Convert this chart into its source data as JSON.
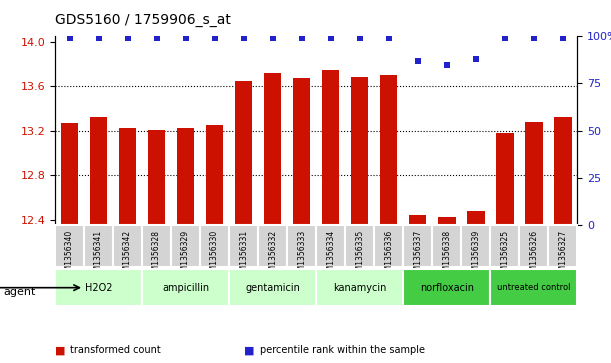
{
  "title": "GDS5160 / 1759906_s_at",
  "samples": [
    "GSM1356340",
    "GSM1356341",
    "GSM1356342",
    "GSM1356328",
    "GSM1356329",
    "GSM1356330",
    "GSM1356331",
    "GSM1356332",
    "GSM1356333",
    "GSM1356334",
    "GSM1356335",
    "GSM1356336",
    "GSM1356337",
    "GSM1356338",
    "GSM1356339",
    "GSM1356325",
    "GSM1356326",
    "GSM1356327"
  ],
  "bar_values": [
    13.27,
    13.32,
    13.22,
    13.21,
    13.22,
    13.25,
    13.65,
    13.72,
    13.67,
    13.75,
    13.68,
    13.7,
    12.44,
    12.42,
    12.48,
    13.18,
    13.28,
    13.32
  ],
  "percentile_values": [
    99,
    99,
    99,
    99,
    99,
    99,
    99,
    99,
    99,
    99,
    99,
    99,
    87,
    85,
    88,
    99,
    99,
    99
  ],
  "agents": [
    {
      "label": "H2O2",
      "start": 0,
      "end": 3,
      "color": "#ccffcc"
    },
    {
      "label": "ampicillin",
      "start": 3,
      "end": 6,
      "color": "#ccffcc"
    },
    {
      "label": "gentamicin",
      "start": 6,
      "end": 9,
      "color": "#ccffcc"
    },
    {
      "label": "kanamycin",
      "start": 9,
      "end": 12,
      "color": "#ccffcc"
    },
    {
      "label": "norfloxacin",
      "start": 12,
      "end": 15,
      "color": "#44cc44"
    },
    {
      "label": "untreated control",
      "start": 15,
      "end": 18,
      "color": "#44cc44"
    }
  ],
  "bar_color": "#cc1100",
  "dot_color": "#2222cc",
  "ylim_left": [
    12.35,
    14.05
  ],
  "ylim_right": [
    0,
    100
  ],
  "yticks_left": [
    12.4,
    12.8,
    13.2,
    13.6,
    14.0
  ],
  "yticks_right": [
    0,
    25,
    50,
    75,
    100
  ],
  "grid_values": [
    12.8,
    13.2,
    13.6
  ],
  "legend_bar_label": "transformed count",
  "legend_dot_label": "percentile rank within the sample",
  "agent_label": "agent",
  "sample_bg": "#d4d4d4",
  "title_fontsize": 10,
  "bar_fontsize": 5.5,
  "agent_fontsize": 7,
  "agent_fontsize_small": 6
}
